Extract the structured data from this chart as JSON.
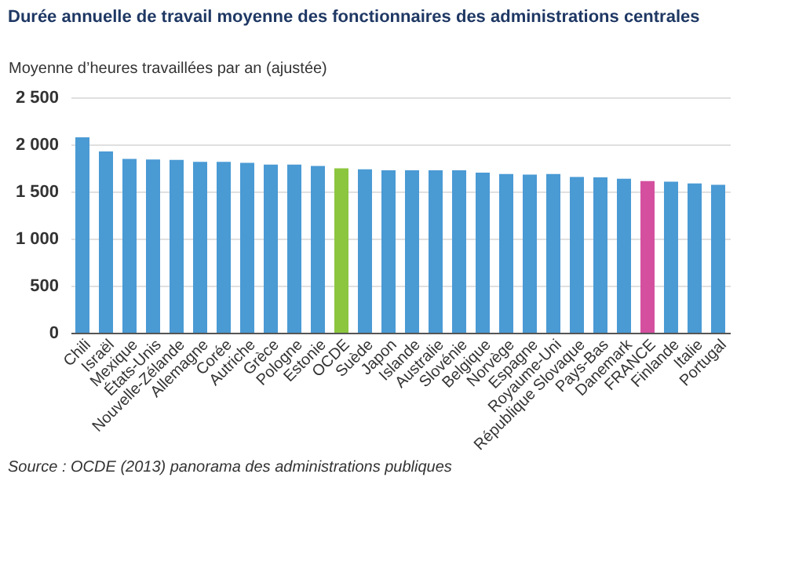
{
  "chart_data": {
    "type": "bar",
    "title": "Durée annuelle de travail moyenne des fonctionnaires des administrations centrales",
    "ylabel": "Moyenne d’heures travaillées par an (ajustée)",
    "categories": [
      "Chili",
      "Israël",
      "Mexique",
      "États-Unis",
      "Nouvelle-Zélande",
      "Allemagne",
      "Corée",
      "Autriche",
      "Grèce",
      "Pologne",
      "Estonie",
      "OCDE",
      "Suède",
      "Japon",
      "Islande",
      "Australie",
      "Slovénie",
      "Belgique",
      "Norvège",
      "Espagne",
      "Royaume-Uni",
      "République Slovaque",
      "Pays-Bas",
      "Danemark",
      "FRANCE",
      "Finlande",
      "Italie",
      "Portugal"
    ],
    "values": [
      2075,
      1925,
      1845,
      1840,
      1835,
      1815,
      1815,
      1805,
      1785,
      1785,
      1770,
      1745,
      1735,
      1725,
      1725,
      1725,
      1725,
      1700,
      1685,
      1680,
      1685,
      1655,
      1650,
      1635,
      1610,
      1605,
      1585,
      1570
    ],
    "colors": [
      "#4a9ad4",
      "#4a9ad4",
      "#4a9ad4",
      "#4a9ad4",
      "#4a9ad4",
      "#4a9ad4",
      "#4a9ad4",
      "#4a9ad4",
      "#4a9ad4",
      "#4a9ad4",
      "#4a9ad4",
      "#8cc63f",
      "#4a9ad4",
      "#4a9ad4",
      "#4a9ad4",
      "#4a9ad4",
      "#4a9ad4",
      "#4a9ad4",
      "#4a9ad4",
      "#4a9ad4",
      "#4a9ad4",
      "#4a9ad4",
      "#4a9ad4",
      "#4a9ad4",
      "#d4509f",
      "#4a9ad4",
      "#4a9ad4",
      "#4a9ad4"
    ],
    "ylim": [
      0,
      2500
    ],
    "yticks": [
      0,
      500,
      {
        "value": 1000,
        "label": "1 000"
      },
      {
        "value": 1500,
        "label": "1 500"
      },
      {
        "value": 2000,
        "label": "2 000"
      },
      {
        "value": 2500,
        "label": "2 500"
      }
    ],
    "grid": "y",
    "annotations": [
      "Source : OCDE (2013) panorama des administrations publiques"
    ]
  }
}
